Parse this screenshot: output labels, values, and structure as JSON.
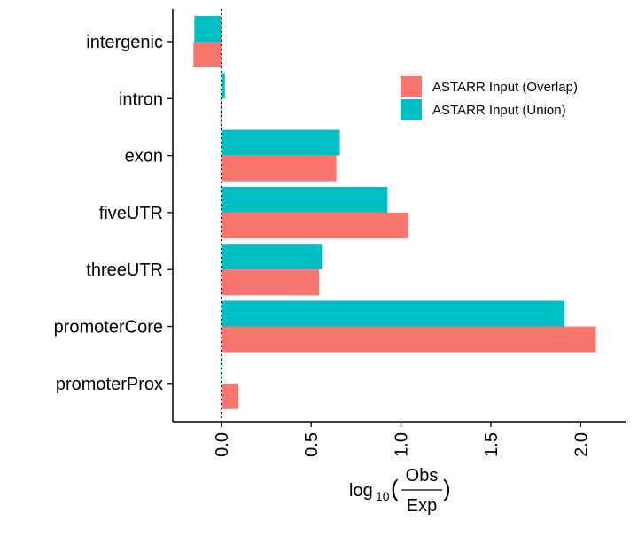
{
  "chart_data": {
    "type": "bar",
    "orientation": "horizontal",
    "categories": [
      "intergenic",
      "intron",
      "exon",
      "fiveUTR",
      "threeUTR",
      "promoterCore",
      "promoterProx"
    ],
    "series": [
      {
        "name": "ASTARR Input (Overlap)",
        "color": "#F8766D",
        "values": [
          -0.155,
          -0.005,
          0.64,
          1.04,
          0.545,
          2.085,
          0.095
        ]
      },
      {
        "name": "ASTARR Input (Union)",
        "color": "#00BFC4",
        "values": [
          -0.15,
          0.02,
          0.66,
          0.925,
          0.56,
          1.91,
          0.002
        ]
      }
    ],
    "xlim": [
      -0.27,
      2.25
    ],
    "xticks": [
      "0.0",
      "0.5",
      "1.0",
      "1.5",
      "2.0"
    ],
    "xtick_values": [
      0,
      0.5,
      1.0,
      1.5,
      2.0
    ],
    "xlabel": {
      "prefix": "log",
      "subscript": "10",
      "numerator": "Obs",
      "denominator": "Exp"
    },
    "reference_line": 0,
    "legend_position": "top-right",
    "grid": false
  }
}
